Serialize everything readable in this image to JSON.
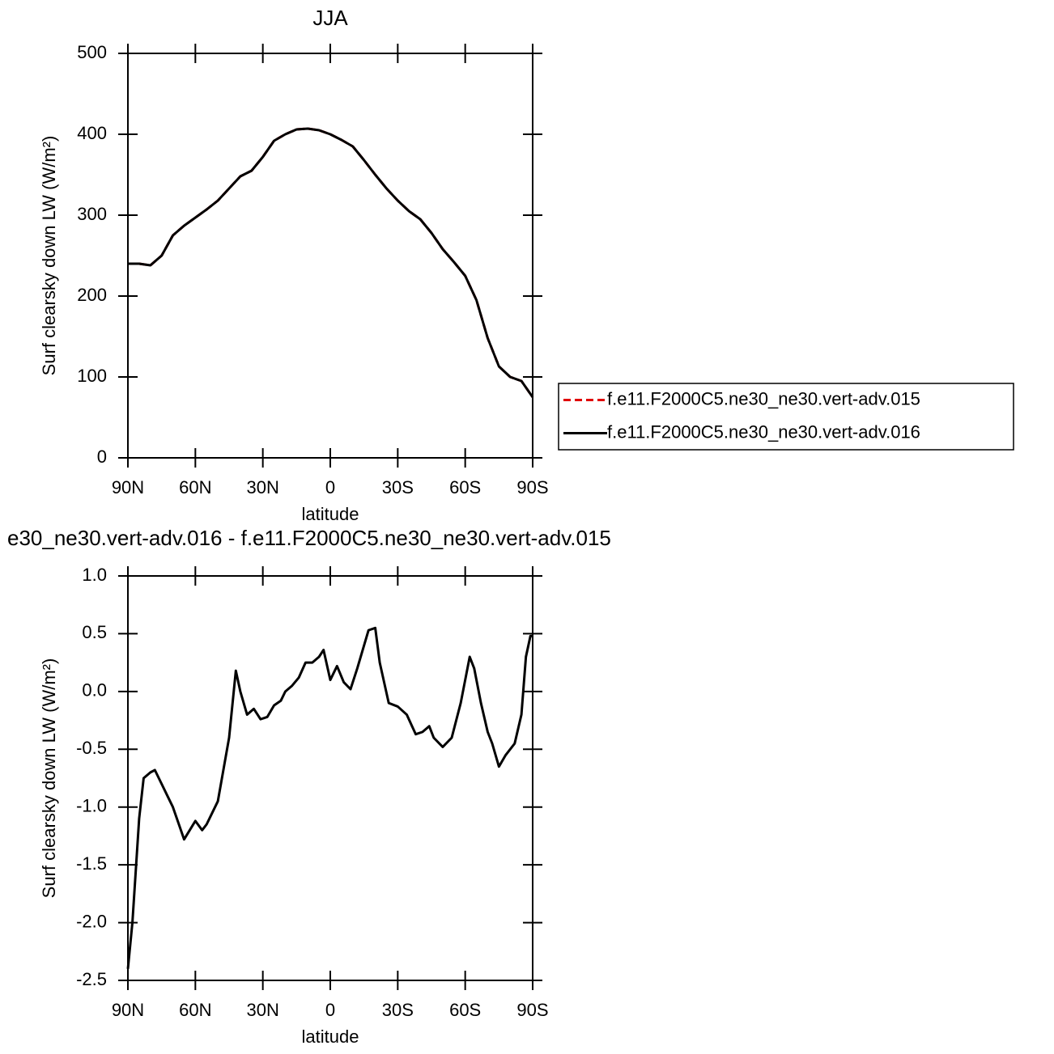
{
  "chart_data": [
    {
      "type": "line",
      "title": "JJA",
      "xlabel": "latitude",
      "ylabel": "Surf clearsky down LW (W/m²)",
      "xlim": [
        90,
        -90
      ],
      "xticks": [
        {
          "value": 90,
          "label": "90N"
        },
        {
          "value": 60,
          "label": "60N"
        },
        {
          "value": 30,
          "label": "30N"
        },
        0,
        {
          "value": -30,
          "label": "30S"
        },
        {
          "value": -60,
          "label": "60S"
        },
        {
          "value": -90,
          "label": "90S"
        }
      ],
      "ylim": [
        0,
        500
      ],
      "yticks": [
        0,
        100,
        200,
        300,
        400,
        500
      ],
      "x": [
        90,
        85,
        80,
        75,
        70,
        65,
        60,
        55,
        50,
        45,
        40,
        35,
        30,
        25,
        20,
        15,
        10,
        5,
        0,
        -5,
        -10,
        -15,
        -20,
        -25,
        -30,
        -35,
        -40,
        -45,
        -50,
        -55,
        -60,
        -65,
        -70,
        -75,
        -80,
        -85,
        -90
      ],
      "series": [
        {
          "name": "f.e11.F2000C5.ne30_ne30.vert-adv.015",
          "color": "#e00000",
          "dash": true,
          "values": [
            240,
            240,
            238,
            250,
            275,
            287,
            297,
            307,
            318,
            333,
            348,
            355,
            372,
            392,
            400,
            406,
            407,
            405,
            400,
            393,
            385,
            368,
            350,
            333,
            318,
            305,
            295,
            278,
            258,
            242,
            225,
            195,
            148,
            113,
            100,
            95,
            75
          ]
        },
        {
          "name": "f.e11.F2000C5.ne30_ne30.vert-adv.016",
          "color": "#000000",
          "dash": false,
          "values": [
            240,
            240,
            238,
            250,
            275,
            287,
            297,
            307,
            318,
            333,
            348,
            355,
            372,
            392,
            400,
            406,
            407,
            405,
            400,
            393,
            385,
            368,
            350,
            333,
            318,
            305,
            295,
            278,
            258,
            242,
            225,
            195,
            148,
            113,
            100,
            95,
            75
          ]
        }
      ]
    },
    {
      "type": "line",
      "title": "e30_ne30.vert-adv.016 - f.e11.F2000C5.ne30_ne30.vert-adv.015",
      "xlabel": "latitude",
      "ylabel": "Surf clearsky down LW (W/m²)",
      "xlim": [
        90,
        -90
      ],
      "xticks": [
        {
          "value": 90,
          "label": "90N"
        },
        {
          "value": 60,
          "label": "60N"
        },
        {
          "value": 30,
          "label": "30N"
        },
        0,
        {
          "value": -30,
          "label": "30S"
        },
        {
          "value": -60,
          "label": "60S"
        },
        {
          "value": -90,
          "label": "90S"
        }
      ],
      "ylim": [
        -2.5,
        1
      ],
      "yticks": [
        {
          "value": 1,
          "label": "1.0"
        },
        0.5,
        {
          "value": 0,
          "label": "0.0"
        },
        -0.5,
        {
          "value": -1,
          "label": "-1.0"
        },
        -1.5,
        {
          "value": -2,
          "label": "-2.0"
        },
        -2.5
      ],
      "x": [
        90,
        88,
        85,
        83,
        80,
        78,
        75,
        72,
        70,
        65,
        60,
        57,
        55,
        50,
        45,
        42,
        40,
        37,
        34,
        31,
        28,
        25,
        22,
        20,
        17,
        14,
        11,
        8,
        5,
        3,
        0,
        -3,
        -6,
        -9,
        -12,
        -17,
        -20,
        -22,
        -26,
        -30,
        -34,
        -38,
        -41,
        -44,
        -46,
        -50,
        -54,
        -58,
        -62,
        -64,
        -67,
        -70,
        -72,
        -75,
        -78,
        -82,
        -85,
        -87,
        -89,
        -90
      ],
      "series": [
        {
          "name": null,
          "color": "#000000",
          "dash": false,
          "values": [
            -2.4,
            -2.0,
            -1.1,
            -0.75,
            -0.7,
            -0.68,
            -0.8,
            -0.92,
            -1.0,
            -1.28,
            -1.12,
            -1.2,
            -1.15,
            -0.95,
            -0.4,
            0.18,
            0.0,
            -0.2,
            -0.15,
            -0.24,
            -0.22,
            -0.12,
            -0.08,
            0.0,
            0.05,
            0.12,
            0.25,
            0.25,
            0.3,
            0.36,
            0.1,
            0.22,
            0.08,
            0.02,
            0.2,
            0.53,
            0.55,
            0.25,
            -0.1,
            -0.13,
            -0.2,
            -0.37,
            -0.35,
            -0.3,
            -0.4,
            -0.48,
            -0.4,
            -0.1,
            0.3,
            0.2,
            -0.1,
            -0.35,
            -0.45,
            -0.65,
            -0.55,
            -0.45,
            -0.2,
            0.3,
            0.48,
            0.48
          ]
        }
      ]
    }
  ]
}
